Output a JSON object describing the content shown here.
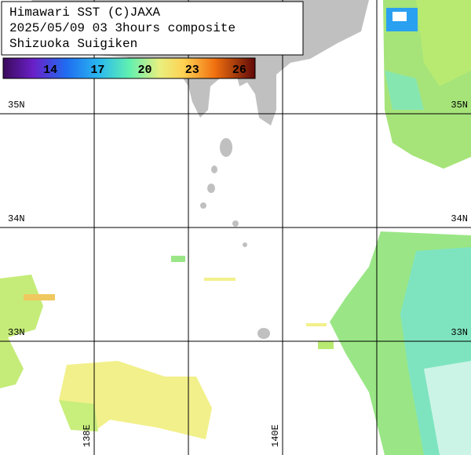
{
  "map": {
    "title_lines": [
      "Himawari SST (C)JAXA",
      "2025/05/09 03 3hours composite",
      "Shizuoka Suigiken"
    ],
    "colorbar": {
      "range": [
        11,
        27
      ],
      "ticks": [
        14,
        17,
        20,
        23,
        26
      ]
    },
    "lon_range": [
      137,
      142
    ],
    "lat_range": [
      32,
      36
    ],
    "lon_grid": [
      138,
      139,
      140,
      141
    ],
    "lat_grid": [
      33,
      34,
      35
    ],
    "lon_labels": [
      {
        "value": 138,
        "label": "138E"
      },
      {
        "value": 140,
        "label": "140E"
      }
    ],
    "lat_labels": [
      {
        "value": 35,
        "label": "35N"
      },
      {
        "value": 34,
        "label": "34N"
      },
      {
        "value": 33,
        "label": "33N"
      }
    ]
  }
}
